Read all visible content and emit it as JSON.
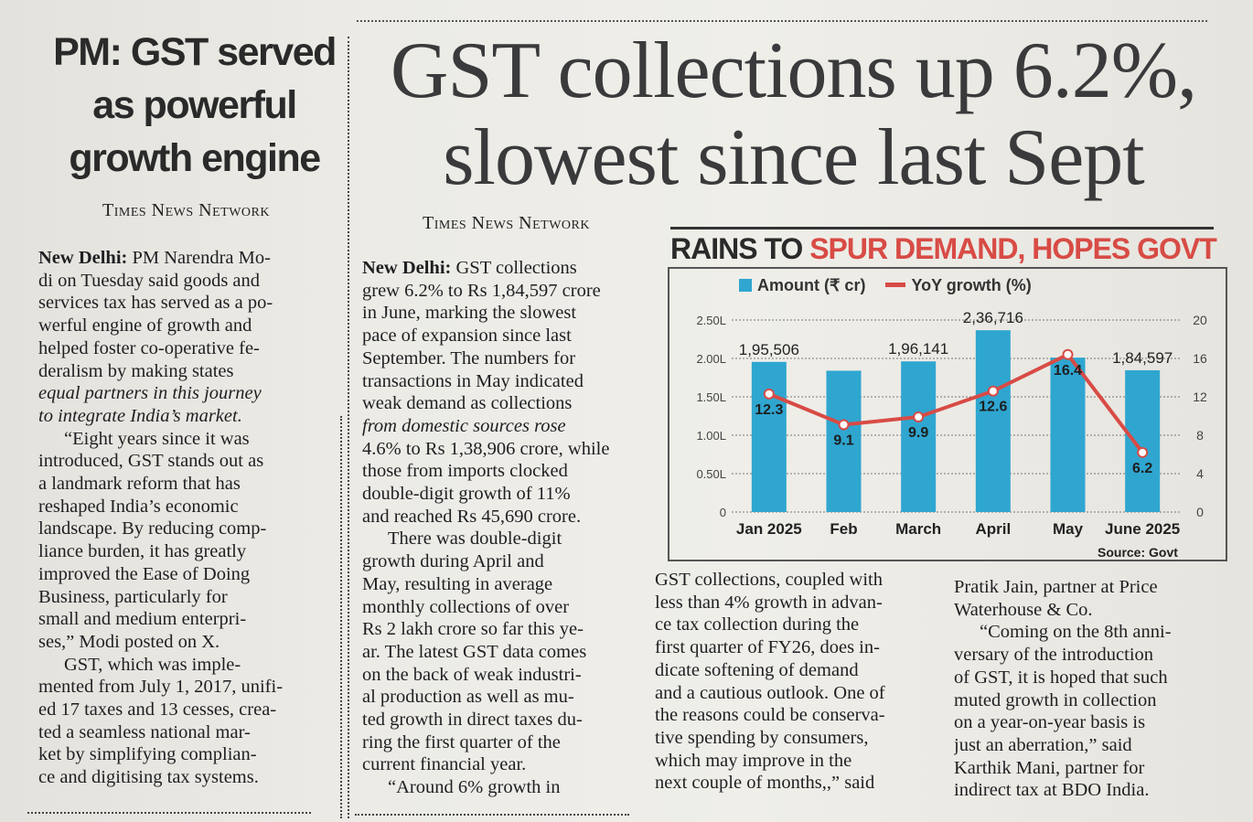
{
  "left_story": {
    "headline_lines": [
      "PM: GST served",
      "as powerful",
      "growth engine"
    ],
    "byline": "Times News Network",
    "lines": [
      "New Delhi: PM Narendra Mo-",
      "di on Tuesday said goods and",
      "services tax has served as a po-",
      "werful engine of growth and",
      "helped foster co-operative fe-",
      "deralism by making states",
      "equal partners in this journey",
      "to integrate India’s market.",
      "“Eight years since it was",
      "introduced, GST stands out as",
      "a landmark reform that has",
      "reshaped India’s economic",
      "landscape. By reducing comp-",
      "liance burden, it has greatly",
      "improved the Ease of Doing",
      "Business, particularly for",
      "small and medium enterpri-",
      "ses,” Modi posted on X.",
      "GST, which was imple-",
      "mented from July 1, 2017, unifi-",
      "ed 17 taxes and 13 cesses, crea-",
      "ted a seamless national mar-",
      "ket by simplifying complian-",
      "ce and digitising tax systems."
    ]
  },
  "main_story": {
    "headline_line1": "GST collections up 6.2%,",
    "headline_line2": "slowest since last Sept",
    "byline": "Times News Network",
    "col1_lines": [
      "New Delhi: GST collections",
      "grew 6.2% to Rs 1,84,597 crore",
      "in June, marking the slowest",
      "pace of expansion since last",
      "September. The numbers for",
      "transactions in May indicated",
      "weak demand as collections",
      "from domestic sources rose",
      "4.6% to Rs 1,38,906 crore, while",
      "those from imports clocked",
      "double-digit growth of 11%",
      "and reached Rs 45,690 crore.",
      "There was double-digit",
      "growth during April and",
      "May, resulting in average",
      "monthly collections of over",
      "Rs 2 lakh crore so far this ye-",
      "ar. The latest GST data comes",
      "on the back of weak industri-",
      "al production as well as mu-",
      "ted growth in direct taxes du-",
      "ring the first quarter of the",
      "current financial year.",
      "“Around 6% growth in"
    ],
    "col2_lines": [
      "GST collections, coupled with",
      "less than 4% growth in advan-",
      "ce tax collection during the",
      "first quarter of FY26, does in-",
      "dicate softening of demand",
      "and a cautious outlook. One of",
      "the reasons could be conserva-",
      "tive spending by consumers,",
      "which may improve in the",
      "next couple of months,,” said"
    ],
    "col3_lines": [
      "Pratik Jain, partner at Price",
      "Waterhouse & Co.",
      "“Coming on the 8th anni-",
      "versary of the introduction",
      "of GST, it is hoped that such",
      "muted growth in collection",
      "on a year-on-year basis is",
      "just an aberration,” said",
      "Karthik Mani, partner for",
      "indirect tax at BDO India."
    ]
  },
  "chart_data": {
    "type": "bar",
    "title_black": "RAINS TO ",
    "title_red": "SPUR DEMAND, HOPES GOVT",
    "categories": [
      "Jan 2025",
      "Feb",
      "March",
      "April",
      "May",
      "June 2025"
    ],
    "series": [
      {
        "name": "Amount (₹ cr)",
        "kind": "bar",
        "values": [
          195506,
          184000,
          196141,
          236716,
          201050,
          184597
        ],
        "labels": [
          "1,95,506",
          "",
          "1,96,141",
          "2,36,716",
          "",
          "1,84,597"
        ],
        "axis": "left",
        "color": "#2fa6d0"
      },
      {
        "name": "YoY growth (%)",
        "kind": "line",
        "values": [
          12.3,
          9.1,
          9.9,
          12.6,
          16.4,
          6.2
        ],
        "labels": [
          "12.3",
          "9.1",
          "9.9",
          "12.6",
          "16.4",
          "6.2"
        ],
        "axis": "right",
        "color": "#d84b45"
      }
    ],
    "left_axis": {
      "ylim": [
        0,
        250000
      ],
      "ticks": [
        0,
        50000,
        100000,
        150000,
        200000,
        250000
      ],
      "tick_labels": [
        "0",
        "0.50L",
        "1.00L",
        "1.50L",
        "2.00L",
        "2.50L"
      ]
    },
    "right_axis": {
      "ylim": [
        0,
        20
      ],
      "ticks": [
        0,
        4,
        8,
        12,
        16,
        20
      ],
      "tick_labels": [
        "0",
        "4",
        "8",
        "12",
        "16",
        "20"
      ]
    },
    "legend_position": "top",
    "source": "Source: Govt"
  }
}
